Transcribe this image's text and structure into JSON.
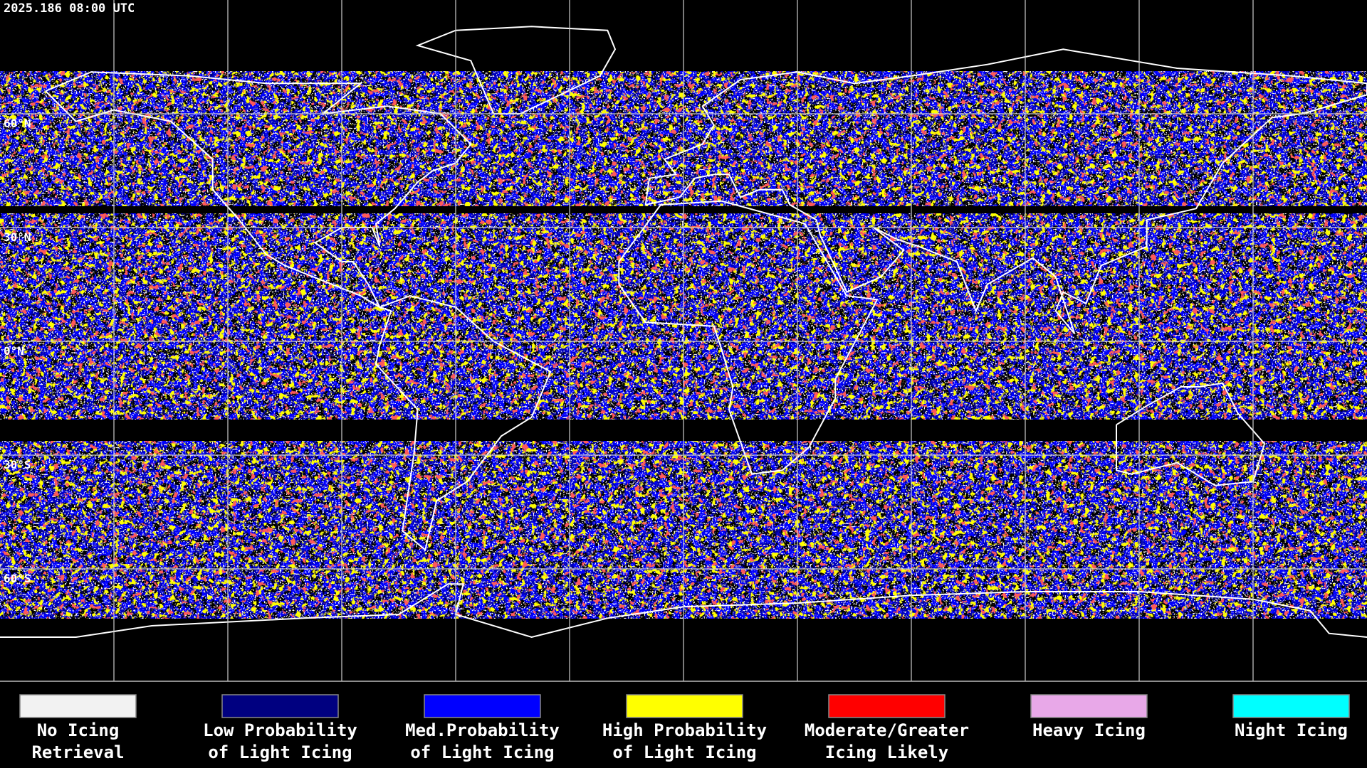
{
  "header": {
    "title": "2025.186 08:00 UTC"
  },
  "map": {
    "latitude_labels": [
      "60°N",
      "30°N",
      "0°N",
      "30°S",
      "60°S"
    ]
  },
  "legend": [
    {
      "label_lines": [
        "No Icing",
        "Retrieval"
      ],
      "color": "#f2f2f2"
    },
    {
      "label_lines": [
        "Low Probability",
        "of Light Icing"
      ],
      "color": "#000080"
    },
    {
      "label_lines": [
        "Med.Probability",
        "of Light Icing"
      ],
      "color": "#0000ff"
    },
    {
      "label_lines": [
        "High Probability",
        "of Light Icing"
      ],
      "color": "#ffff00"
    },
    {
      "label_lines": [
        "Moderate/Greater",
        "Icing Likely"
      ],
      "color": "#ff0000"
    },
    {
      "label_lines": [
        "Heavy Icing"
      ],
      "color": "#e8a8e8"
    },
    {
      "label_lines": [
        "Night Icing"
      ],
      "color": "#00ffff"
    }
  ]
}
